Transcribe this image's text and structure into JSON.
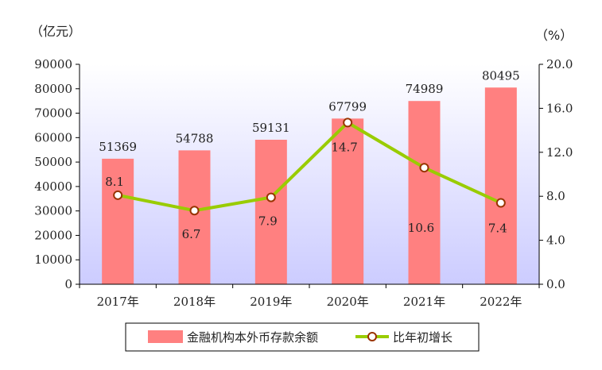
{
  "chart_data": {
    "type": "bar",
    "categories": [
      "2017年",
      "2018年",
      "2019年",
      "2020年",
      "2021年",
      "2022年"
    ],
    "series": [
      {
        "name": "金融机构本外币存款余额",
        "kind": "bar",
        "axis": "left",
        "values": [
          51369,
          54788,
          59131,
          67799,
          74989,
          80495
        ],
        "data_labels": [
          "51369",
          "54788",
          "59131",
          "67799",
          "74989",
          "80495"
        ]
      },
      {
        "name": "比年初增长",
        "kind": "line",
        "axis": "right",
        "values": [
          8.1,
          6.7,
          7.9,
          14.7,
          10.6,
          7.4
        ],
        "data_labels": [
          "8.1",
          "6.7",
          "7.9",
          "14.7",
          "10.6",
          "7.4"
        ]
      }
    ],
    "y_left": {
      "unit": "（亿元）",
      "ylim": [
        0,
        90000
      ],
      "ticks": [
        "0",
        "10000",
        "20000",
        "30000",
        "40000",
        "50000",
        "60000",
        "70000",
        "80000",
        "90000"
      ]
    },
    "y_right": {
      "unit": "（%）",
      "ylim": [
        0,
        20
      ],
      "ticks": [
        "0.0",
        "4.0",
        "8.0",
        "12.0",
        "16.0",
        "20.0"
      ]
    },
    "legend_position": "bottom",
    "colors": {
      "bar": "#ff8080",
      "line": "#99cc00",
      "marker_edge": "#993300",
      "marker_fill": "#ffffff",
      "plot_bg_top": "#ffffff",
      "plot_bg_bottom": "#ccccff"
    }
  }
}
